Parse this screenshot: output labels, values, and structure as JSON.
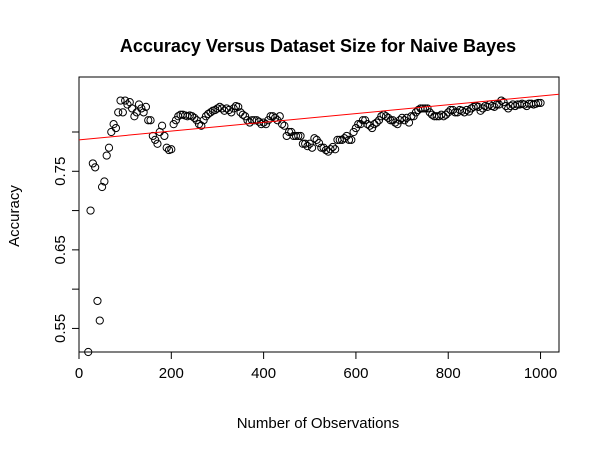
{
  "chart_data": {
    "type": "scatter",
    "title": "Accuracy Versus Dataset Size for Naive Bayes",
    "xlabel": "Number of Observations",
    "ylabel": "Accuracy",
    "xlim": [
      0,
      1040
    ],
    "ylim": [
      0.52,
      0.87
    ],
    "x_ticks": [
      0,
      200,
      400,
      600,
      800,
      1000
    ],
    "y_ticks": [
      0.55,
      0.6,
      0.65,
      0.7,
      0.75,
      0.8
    ],
    "y_tick_labels": [
      0.55,
      0.65,
      0.75
    ],
    "grid": false,
    "fit_line": {
      "x": [
        -15,
        1040
      ],
      "y": [
        0.79,
        0.848
      ],
      "color": "#ff0000"
    },
    "point_color": "#000000",
    "points": [
      [
        20,
        0.52
      ],
      [
        25,
        0.7
      ],
      [
        30,
        0.76
      ],
      [
        35,
        0.755
      ],
      [
        40,
        0.585
      ],
      [
        45,
        0.56
      ],
      [
        50,
        0.73
      ],
      [
        55,
        0.737
      ],
      [
        60,
        0.77
      ],
      [
        65,
        0.78
      ],
      [
        70,
        0.8
      ],
      [
        75,
        0.81
      ],
      [
        80,
        0.805
      ],
      [
        85,
        0.825
      ],
      [
        90,
        0.84
      ],
      [
        95,
        0.825
      ],
      [
        100,
        0.84
      ],
      [
        105,
        0.835
      ],
      [
        110,
        0.838
      ],
      [
        115,
        0.83
      ],
      [
        120,
        0.82
      ],
      [
        125,
        0.825
      ],
      [
        130,
        0.835
      ],
      [
        135,
        0.83
      ],
      [
        140,
        0.825
      ],
      [
        145,
        0.832
      ],
      [
        150,
        0.815
      ],
      [
        155,
        0.815
      ],
      [
        160,
        0.795
      ],
      [
        165,
        0.79
      ],
      [
        170,
        0.785
      ],
      [
        175,
        0.8
      ],
      [
        180,
        0.808
      ],
      [
        185,
        0.795
      ],
      [
        190,
        0.78
      ],
      [
        195,
        0.777
      ],
      [
        200,
        0.778
      ],
      [
        205,
        0.81
      ],
      [
        210,
        0.815
      ],
      [
        215,
        0.82
      ],
      [
        220,
        0.822
      ],
      [
        225,
        0.822
      ],
      [
        230,
        0.821
      ],
      [
        235,
        0.82
      ],
      [
        240,
        0.821
      ],
      [
        245,
        0.82
      ],
      [
        250,
        0.818
      ],
      [
        255,
        0.815
      ],
      [
        260,
        0.81
      ],
      [
        265,
        0.808
      ],
      [
        270,
        0.815
      ],
      [
        275,
        0.82
      ],
      [
        280,
        0.823
      ],
      [
        285,
        0.825
      ],
      [
        290,
        0.827
      ],
      [
        295,
        0.828
      ],
      [
        300,
        0.83
      ],
      [
        305,
        0.832
      ],
      [
        310,
        0.83
      ],
      [
        315,
        0.827
      ],
      [
        320,
        0.83
      ],
      [
        325,
        0.828
      ],
      [
        330,
        0.825
      ],
      [
        335,
        0.83
      ],
      [
        340,
        0.833
      ],
      [
        345,
        0.832
      ],
      [
        350,
        0.825
      ],
      [
        355,
        0.822
      ],
      [
        360,
        0.82
      ],
      [
        365,
        0.815
      ],
      [
        370,
        0.812
      ],
      [
        375,
        0.815
      ],
      [
        380,
        0.815
      ],
      [
        385,
        0.815
      ],
      [
        390,
        0.813
      ],
      [
        395,
        0.81
      ],
      [
        400,
        0.812
      ],
      [
        405,
        0.81
      ],
      [
        410,
        0.815
      ],
      [
        415,
        0.82
      ],
      [
        420,
        0.82
      ],
      [
        425,
        0.818
      ],
      [
        430,
        0.815
      ],
      [
        435,
        0.82
      ],
      [
        440,
        0.81
      ],
      [
        445,
        0.808
      ],
      [
        450,
        0.795
      ],
      [
        455,
        0.8
      ],
      [
        460,
        0.8
      ],
      [
        465,
        0.795
      ],
      [
        470,
        0.795
      ],
      [
        475,
        0.795
      ],
      [
        480,
        0.795
      ],
      [
        485,
        0.785
      ],
      [
        490,
        0.785
      ],
      [
        495,
        0.782
      ],
      [
        500,
        0.785
      ],
      [
        505,
        0.78
      ],
      [
        510,
        0.792
      ],
      [
        515,
        0.79
      ],
      [
        520,
        0.786
      ],
      [
        525,
        0.78
      ],
      [
        530,
        0.78
      ],
      [
        535,
        0.777
      ],
      [
        540,
        0.775
      ],
      [
        545,
        0.778
      ],
      [
        550,
        0.781
      ],
      [
        555,
        0.778
      ],
      [
        560,
        0.79
      ],
      [
        565,
        0.79
      ],
      [
        570,
        0.79
      ],
      [
        575,
        0.792
      ],
      [
        580,
        0.795
      ],
      [
        585,
        0.79
      ],
      [
        590,
        0.79
      ],
      [
        595,
        0.8
      ],
      [
        600,
        0.805
      ],
      [
        605,
        0.81
      ],
      [
        610,
        0.81
      ],
      [
        615,
        0.815
      ],
      [
        620,
        0.815
      ],
      [
        625,
        0.81
      ],
      [
        630,
        0.808
      ],
      [
        635,
        0.805
      ],
      [
        640,
        0.81
      ],
      [
        645,
        0.812
      ],
      [
        650,
        0.815
      ],
      [
        655,
        0.82
      ],
      [
        660,
        0.822
      ],
      [
        665,
        0.82
      ],
      [
        670,
        0.818
      ],
      [
        675,
        0.815
      ],
      [
        680,
        0.815
      ],
      [
        685,
        0.812
      ],
      [
        690,
        0.81
      ],
      [
        695,
        0.815
      ],
      [
        700,
        0.818
      ],
      [
        705,
        0.815
      ],
      [
        710,
        0.818
      ],
      [
        715,
        0.812
      ],
      [
        720,
        0.82
      ],
      [
        725,
        0.82
      ],
      [
        730,
        0.825
      ],
      [
        735,
        0.828
      ],
      [
        740,
        0.83
      ],
      [
        745,
        0.83
      ],
      [
        750,
        0.83
      ],
      [
        755,
        0.83
      ],
      [
        760,
        0.825
      ],
      [
        765,
        0.822
      ],
      [
        770,
        0.82
      ],
      [
        775,
        0.82
      ],
      [
        780,
        0.82
      ],
      [
        785,
        0.822
      ],
      [
        790,
        0.82
      ],
      [
        795,
        0.822
      ],
      [
        800,
        0.825
      ],
      [
        805,
        0.828
      ],
      [
        810,
        0.828
      ],
      [
        815,
        0.825
      ],
      [
        820,
        0.825
      ],
      [
        825,
        0.828
      ],
      [
        830,
        0.827
      ],
      [
        835,
        0.825
      ],
      [
        840,
        0.828
      ],
      [
        845,
        0.826
      ],
      [
        850,
        0.83
      ],
      [
        855,
        0.832
      ],
      [
        860,
        0.833
      ],
      [
        865,
        0.832
      ],
      [
        870,
        0.827
      ],
      [
        875,
        0.83
      ],
      [
        880,
        0.833
      ],
      [
        885,
        0.832
      ],
      [
        890,
        0.835
      ],
      [
        895,
        0.833
      ],
      [
        900,
        0.832
      ],
      [
        905,
        0.835
      ],
      [
        910,
        0.835
      ],
      [
        915,
        0.84
      ],
      [
        920,
        0.838
      ],
      [
        925,
        0.833
      ],
      [
        930,
        0.83
      ],
      [
        935,
        0.833
      ],
      [
        940,
        0.835
      ],
      [
        945,
        0.833
      ],
      [
        950,
        0.835
      ],
      [
        955,
        0.835
      ],
      [
        960,
        0.836
      ],
      [
        965,
        0.835
      ],
      [
        970,
        0.833
      ],
      [
        975,
        0.836
      ],
      [
        980,
        0.836
      ],
      [
        985,
        0.835
      ],
      [
        990,
        0.836
      ],
      [
        995,
        0.837
      ],
      [
        1000,
        0.837
      ]
    ]
  }
}
